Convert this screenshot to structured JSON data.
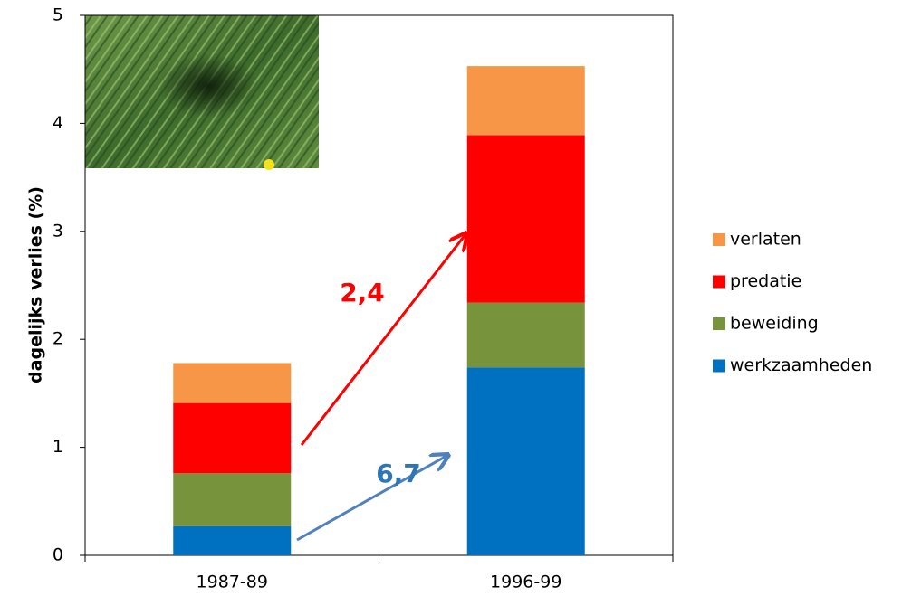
{
  "chart_data": {
    "type": "stacked_bar",
    "y_label": "dagelijks verlies (%)",
    "categories": [
      "1987-89",
      "1996-99"
    ],
    "series": [
      {
        "name": "werkzaamheden",
        "color": "#0070c0",
        "values": [
          0.27,
          1.74
        ]
      },
      {
        "name": "beweiding",
        "color": "#77933c",
        "values": [
          0.49,
          0.6
        ]
      },
      {
        "name": "predatie",
        "color": "#ff0000",
        "values": [
          0.65,
          1.55
        ]
      },
      {
        "name": "verlaten",
        "color": "#f79646",
        "values": [
          0.37,
          0.64
        ]
      }
    ],
    "ylim": [
      0,
      5
    ],
    "yticks": [
      0,
      1,
      2,
      3,
      4,
      5
    ],
    "annotations": [
      {
        "text": "2,4",
        "color": "#ff0000"
      },
      {
        "text": "6,7",
        "color": "#2e75b6"
      }
    ],
    "legend": "right"
  }
}
